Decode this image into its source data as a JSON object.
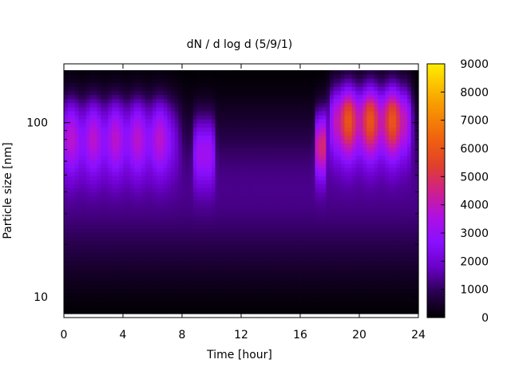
{
  "chart_data": {
    "type": "heatmap",
    "title": "dN / d log d (5/9/1)",
    "xlabel": "Time [hour]",
    "ylabel": "Particle size [nm]",
    "x_ticks": [
      "0",
      "4",
      "8",
      "12",
      "16",
      "20",
      "24"
    ],
    "xlim": [
      0,
      24
    ],
    "y_scale": "log",
    "y_ticks": [
      "10",
      "100"
    ],
    "ylim": [
      8,
      200
    ],
    "colorbar": {
      "range": [
        0,
        9000
      ],
      "ticks": [
        "0",
        "1000",
        "2000",
        "3000",
        "4000",
        "5000",
        "6000",
        "7000",
        "8000",
        "9000"
      ],
      "colormap": [
        "#000000",
        "#2a0050",
        "#6a00c8",
        "#8a10ff",
        "#b010e0",
        "#d0208a",
        "#e0402a",
        "#f06010",
        "#f8a000",
        "#ffee00"
      ]
    },
    "legend": "none",
    "grid": false,
    "modes": [
      {
        "hour_range": [
          0,
          7
        ],
        "size_nm": 85,
        "peak": 4800
      },
      {
        "hour_range": [
          9,
          10
        ],
        "size_nm": 70,
        "peak": 3800
      },
      {
        "hour_range": [
          17.2,
          17.6
        ],
        "size_nm": 75,
        "peak": 5500
      },
      {
        "hour_range": [
          18.5,
          23
        ],
        "size_nm": 105,
        "peak": 7500
      }
    ]
  }
}
